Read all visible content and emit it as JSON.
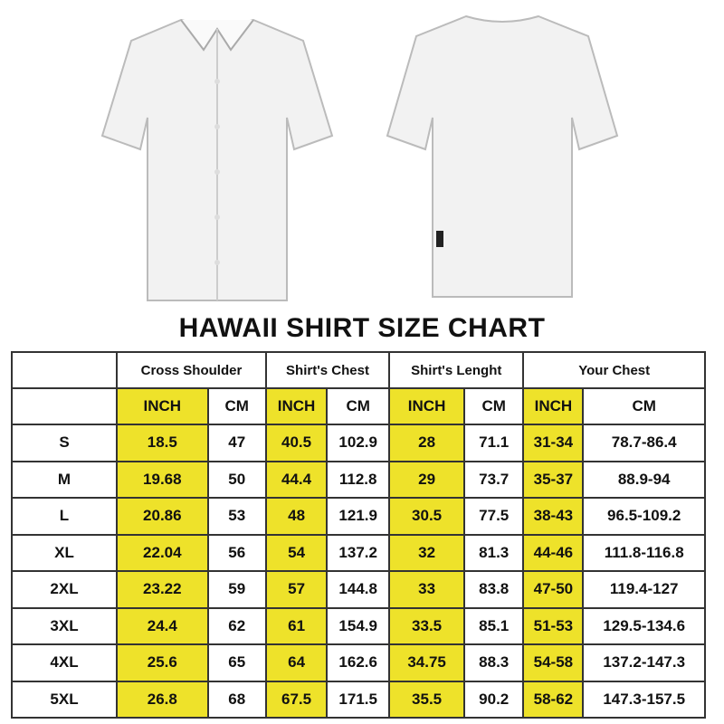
{
  "title": "HAWAII SHIRT SIZE CHART",
  "images": {
    "front": "white-shirt-front",
    "back": "white-shirt-back"
  },
  "colors": {
    "highlight": "#eee22a",
    "border": "#333333"
  },
  "groups": [
    "Cross Shoulder",
    "Shirt's Chest",
    "Shirt's Lenght",
    "Your Chest"
  ],
  "units": {
    "inch": "INCH",
    "cm": "CM"
  },
  "rows": [
    {
      "size": "S",
      "v": [
        "18.5",
        "47",
        "40.5",
        "102.9",
        "28",
        "71.1",
        "31-34",
        "78.7-86.4"
      ]
    },
    {
      "size": "M",
      "v": [
        "19.68",
        "50",
        "44.4",
        "112.8",
        "29",
        "73.7",
        "35-37",
        "88.9-94"
      ]
    },
    {
      "size": "L",
      "v": [
        "20.86",
        "53",
        "48",
        "121.9",
        "30.5",
        "77.5",
        "38-43",
        "96.5-109.2"
      ]
    },
    {
      "size": "XL",
      "v": [
        "22.04",
        "56",
        "54",
        "137.2",
        "32",
        "81.3",
        "44-46",
        "111.8-116.8"
      ]
    },
    {
      "size": "2XL",
      "v": [
        "23.22",
        "59",
        "57",
        "144.8",
        "33",
        "83.8",
        "47-50",
        "119.4-127"
      ]
    },
    {
      "size": "3XL",
      "v": [
        "24.4",
        "62",
        "61",
        "154.9",
        "33.5",
        "85.1",
        "51-53",
        "129.5-134.6"
      ]
    },
    {
      "size": "4XL",
      "v": [
        "25.6",
        "65",
        "64",
        "162.6",
        "34.75",
        "88.3",
        "54-58",
        "137.2-147.3"
      ]
    },
    {
      "size": "5XL",
      "v": [
        "26.8",
        "68",
        "67.5",
        "171.5",
        "35.5",
        "90.2",
        "58-62",
        "147.3-157.5"
      ]
    }
  ]
}
